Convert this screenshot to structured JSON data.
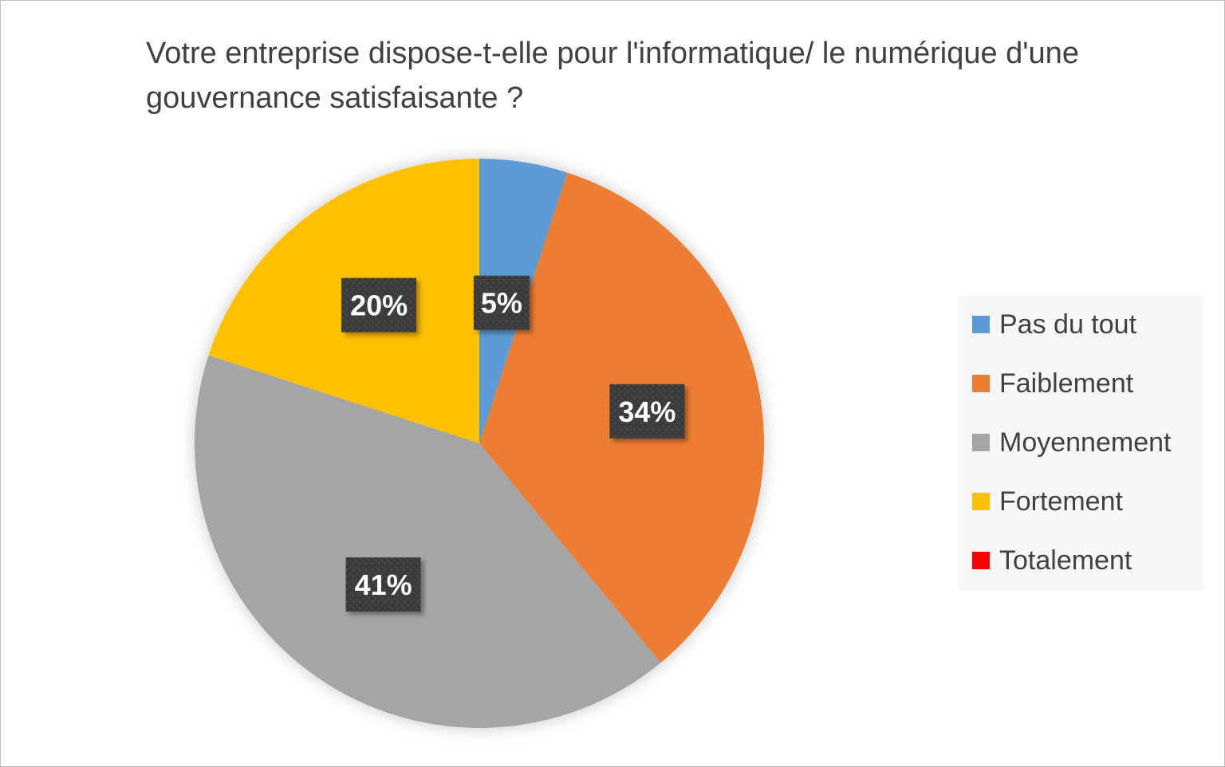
{
  "chart_data": {
    "type": "pie",
    "title": "Votre entreprise dispose-t-elle pour l'informatique/ le numérique d'une gouvernance satisfaisante ?",
    "categories": [
      "Pas du tout",
      "Faiblement",
      "Moyennement",
      "Fortement",
      "Totalement"
    ],
    "values": [
      5,
      34,
      41,
      20,
      0
    ],
    "data_labels": [
      "5%",
      "34%",
      "41%",
      "20%",
      ""
    ],
    "colors": [
      "#5b9bd5",
      "#ed7d31",
      "#a5a5a5",
      "#ffc000",
      "#ff0000"
    ],
    "legend_position": "right",
    "start_angle_deg": 0,
    "direction": "clockwise"
  }
}
